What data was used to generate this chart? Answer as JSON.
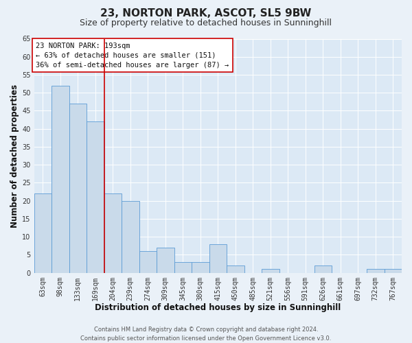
{
  "title": "23, NORTON PARK, ASCOT, SL5 9BW",
  "subtitle": "Size of property relative to detached houses in Sunninghill",
  "xlabel": "Distribution of detached houses by size in Sunninghill",
  "ylabel": "Number of detached properties",
  "footer_line1": "Contains HM Land Registry data © Crown copyright and database right 2024.",
  "footer_line2": "Contains public sector information licensed under the Open Government Licence v3.0.",
  "annotation_line1": "23 NORTON PARK: 193sqm",
  "annotation_line2": "← 63% of detached houses are smaller (151)",
  "annotation_line3": "36% of semi-detached houses are larger (87) →",
  "bar_labels": [
    "63sqm",
    "98sqm",
    "133sqm",
    "169sqm",
    "204sqm",
    "239sqm",
    "274sqm",
    "309sqm",
    "345sqm",
    "380sqm",
    "415sqm",
    "450sqm",
    "485sqm",
    "521sqm",
    "556sqm",
    "591sqm",
    "626sqm",
    "661sqm",
    "697sqm",
    "732sqm",
    "767sqm"
  ],
  "bar_values": [
    22,
    52,
    47,
    42,
    22,
    20,
    6,
    7,
    3,
    3,
    8,
    2,
    0,
    1,
    0,
    0,
    2,
    0,
    0,
    1,
    1
  ],
  "bar_color": "#c9daea",
  "bar_edge_color": "#5b9bd5",
  "background_color": "#eaf1f8",
  "plot_bg_color": "#dce9f5",
  "grid_color": "#ffffff",
  "red_line_color": "#cc0000",
  "ylim": [
    0,
    65
  ],
  "yticks": [
    0,
    5,
    10,
    15,
    20,
    25,
    30,
    35,
    40,
    45,
    50,
    55,
    60,
    65
  ],
  "annotation_box_edge": "#cc0000",
  "title_fontsize": 11,
  "subtitle_fontsize": 9,
  "axis_label_fontsize": 8.5,
  "tick_fontsize": 7,
  "annotation_fontsize": 7.5,
  "footer_fontsize": 6
}
